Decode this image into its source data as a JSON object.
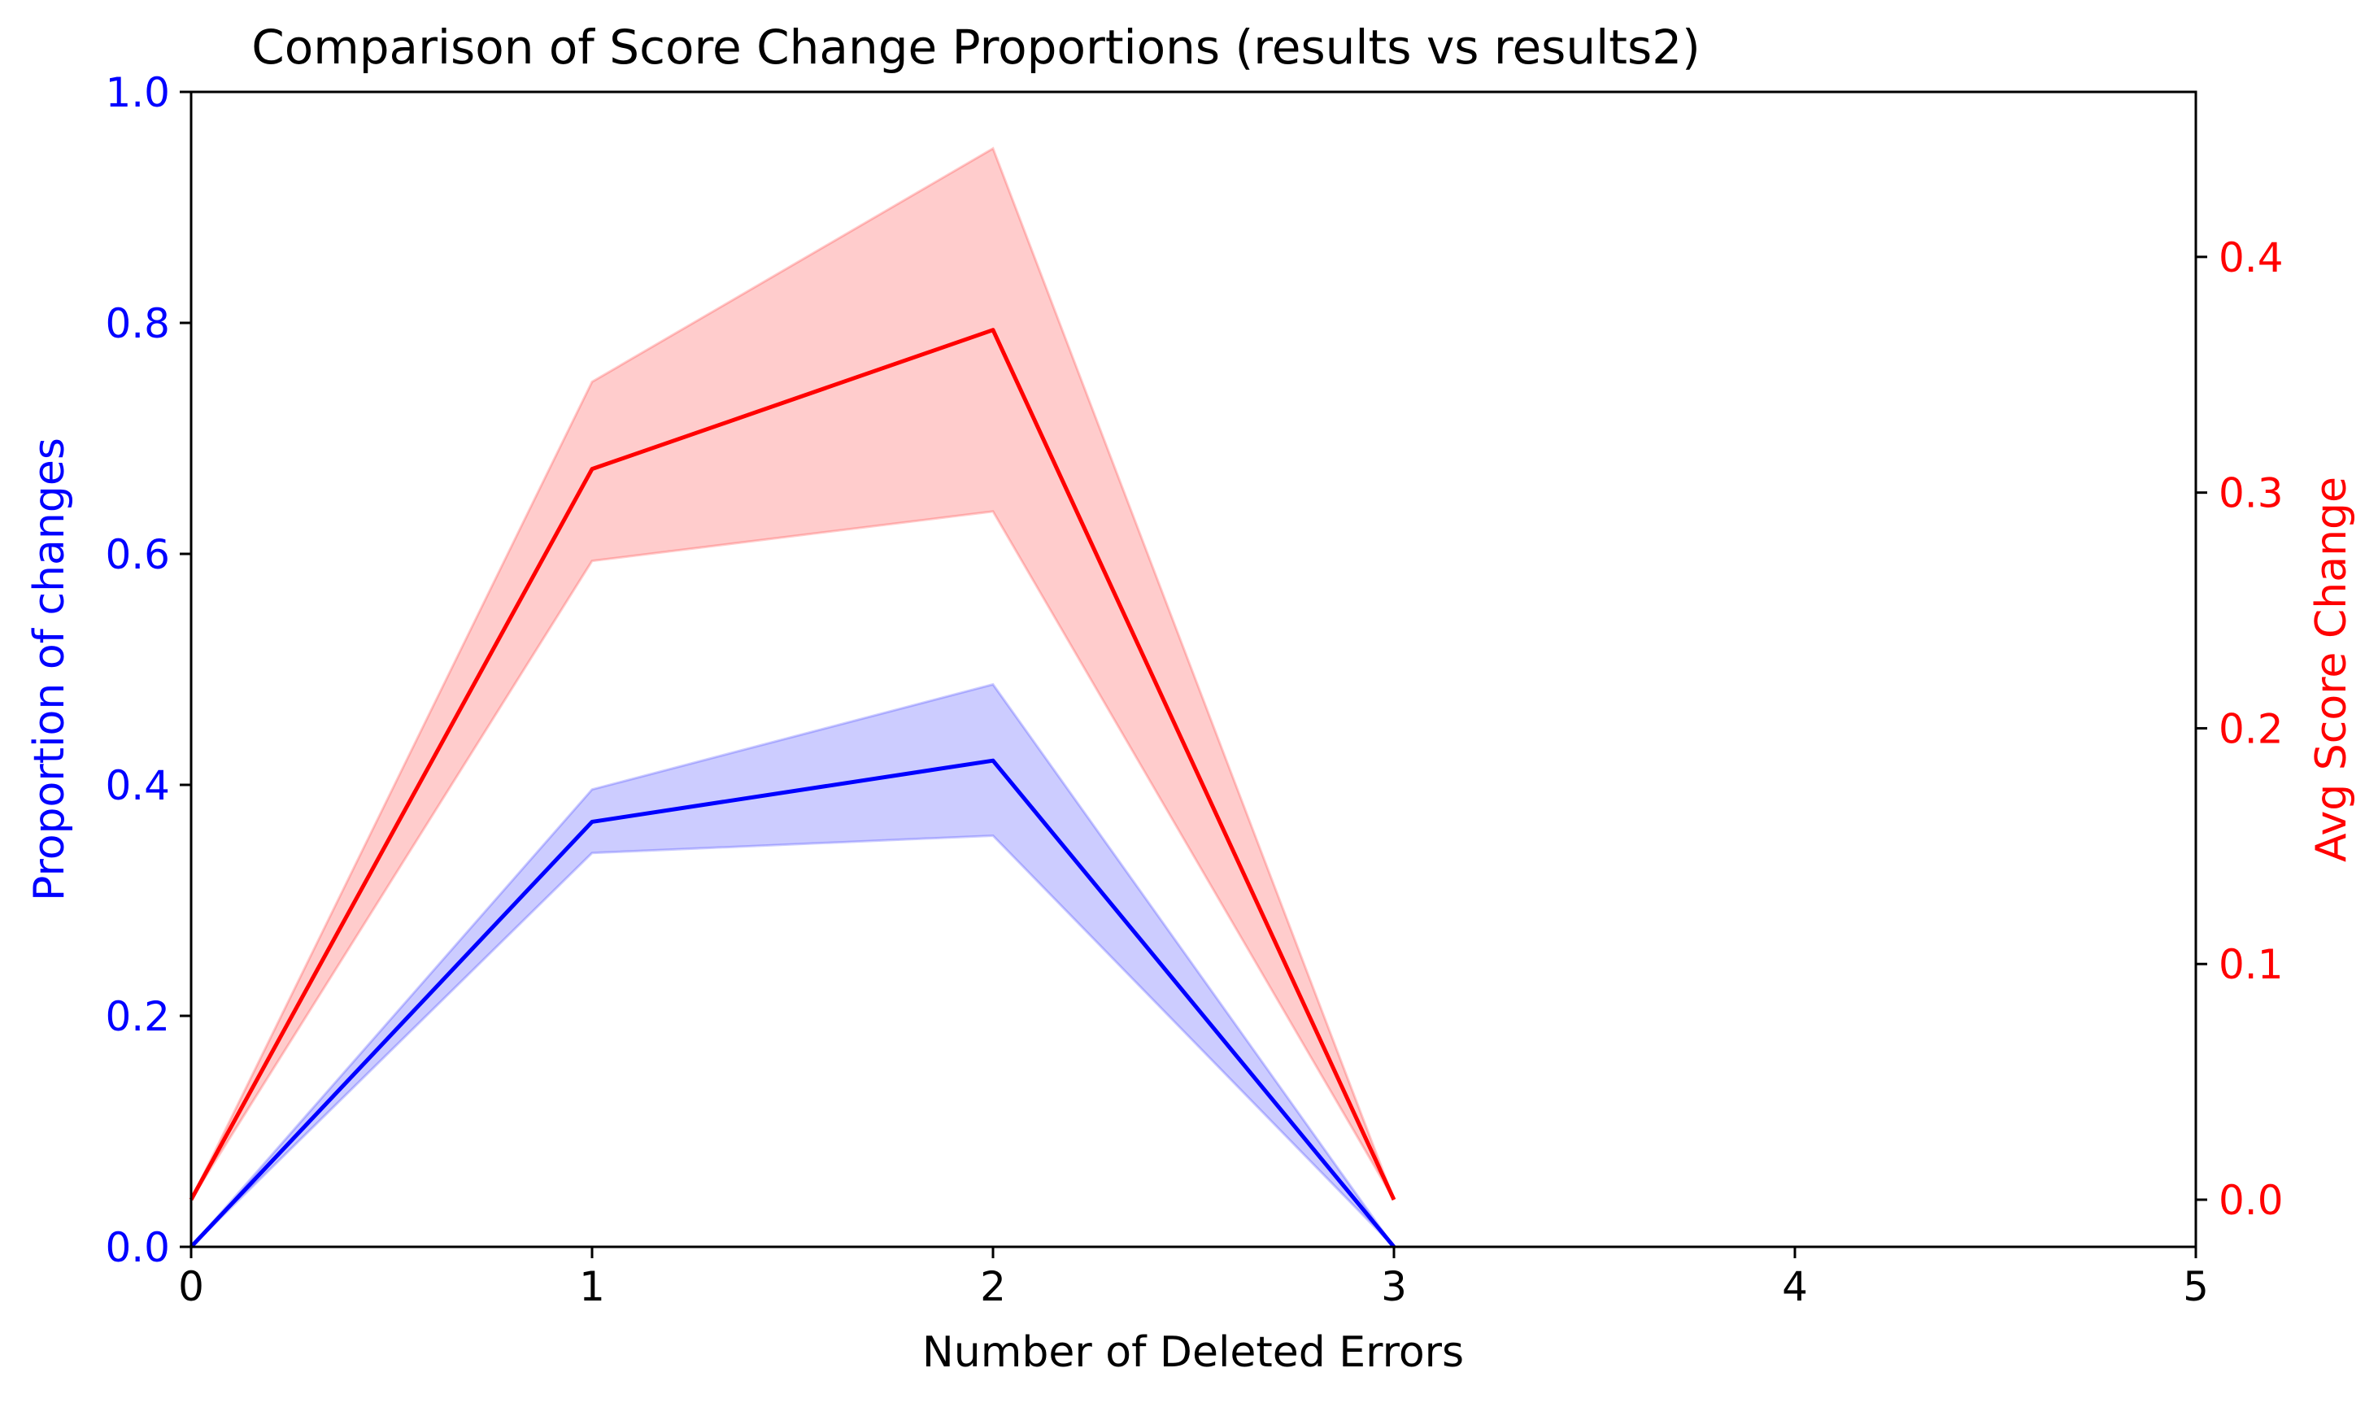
{
  "chart_data": {
    "type": "line",
    "title": "Comparison of Score Change Proportions (results vs results2)",
    "xlabel": "Number of Deleted Errors",
    "xlim": [
      0,
      5
    ],
    "xticks": [
      "0",
      "1",
      "2",
      "3",
      "4",
      "5"
    ],
    "x": [
      0,
      1,
      2,
      3
    ],
    "left_axis": {
      "label": "Proportion of changes",
      "color": "#0000ff",
      "ylim": [
        0,
        1.0
      ],
      "ticks": [
        "0.0",
        "0.2",
        "0.4",
        "0.6",
        "0.8",
        "1.0"
      ]
    },
    "right_axis": {
      "label": "Avg Score Change",
      "color": "#ff0000",
      "ylim": [
        -0.02,
        0.47
      ],
      "ticks": [
        "0.0",
        "0.1",
        "0.2",
        "0.3",
        "0.4"
      ]
    },
    "series": [
      {
        "axis": "left",
        "color": "#0000ff",
        "band_color": "#0000ff",
        "values": [
          0.0,
          0.368,
          0.421,
          0.0
        ],
        "upper": [
          0.0,
          0.396,
          0.487,
          0.0
        ],
        "lower": [
          0.0,
          0.341,
          0.356,
          0.0
        ]
      },
      {
        "axis": "right",
        "color": "#ff0000",
        "band_color": "#ff0000",
        "values": [
          0.0,
          0.31,
          0.369,
          0.0
        ],
        "upper": [
          0.0,
          0.347,
          0.446,
          0.0
        ],
        "lower": [
          0.0,
          0.271,
          0.292,
          0.0
        ]
      }
    ],
    "grid": false,
    "legend": "none"
  }
}
